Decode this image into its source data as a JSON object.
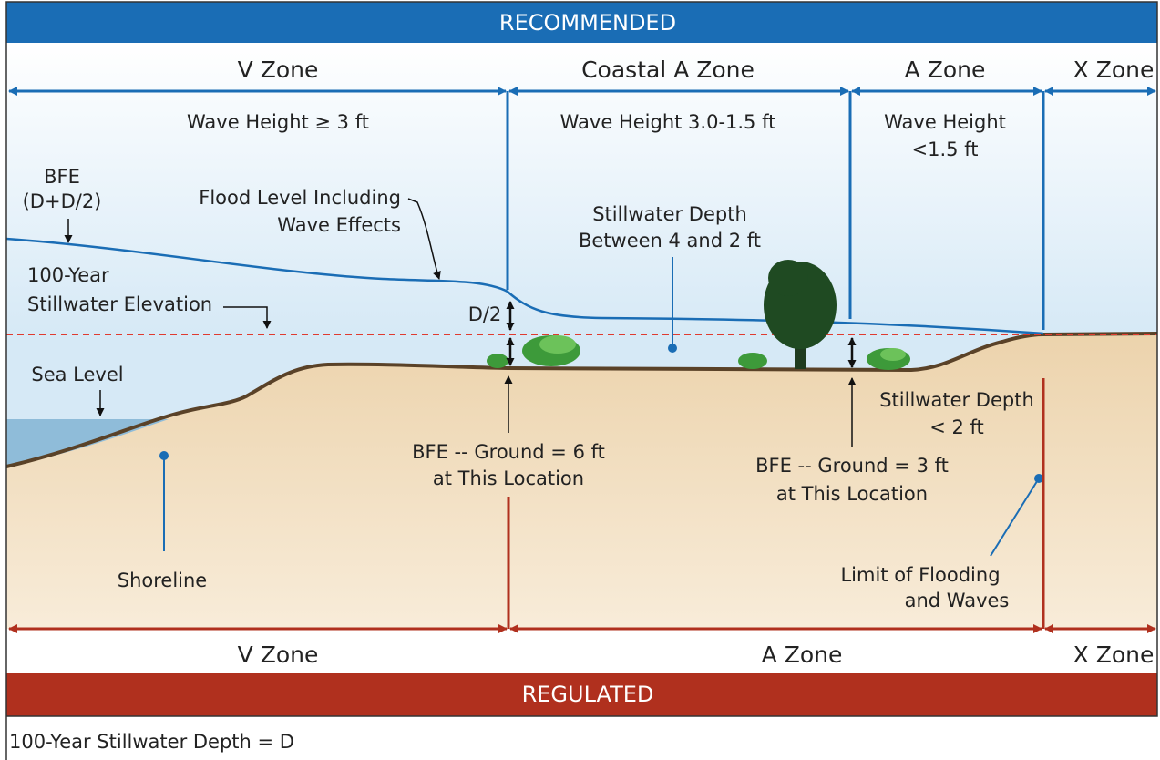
{
  "top_banner": "RECOMMENDED",
  "recommended_zones": [
    "V Zone",
    "Coastal A Zone",
    "A Zone",
    "X Zone"
  ],
  "wave_heights": {
    "v_zone": "Wave Height ≥ 3 ft",
    "coastal_a_zone": "Wave Height 3.0-1.5 ft",
    "a_zone": [
      "Wave Height",
      "<1.5 ft"
    ]
  },
  "labels": {
    "bfe": [
      "BFE",
      "(D+D/2)"
    ],
    "flood_level": [
      "Flood Level Including",
      "Wave Effects"
    ],
    "stillwater_depth_coastal": [
      "Stillwater Depth",
      "Between 4 and 2 ft"
    ],
    "stillwater_elevation": [
      "100-Year",
      "Stillwater Elevation"
    ],
    "d_half": "D/2",
    "sea_level": "Sea Level",
    "shoreline": "Shoreline",
    "bfe_ground_6": [
      "BFE -- Ground = 6 ft",
      "at This Location"
    ],
    "stillwater_depth_a": [
      "Stillwater Depth",
      "< 2 ft"
    ],
    "bfe_ground_3": [
      "BFE -- Ground = 3 ft",
      "at This Location"
    ],
    "limit": [
      "Limit of Flooding",
      "and Waves"
    ]
  },
  "regulated_zones": [
    "V Zone",
    "A Zone",
    "X Zone"
  ],
  "bottom_banner": "REGULATED",
  "footnote": "100-Year Stillwater Depth = D"
}
